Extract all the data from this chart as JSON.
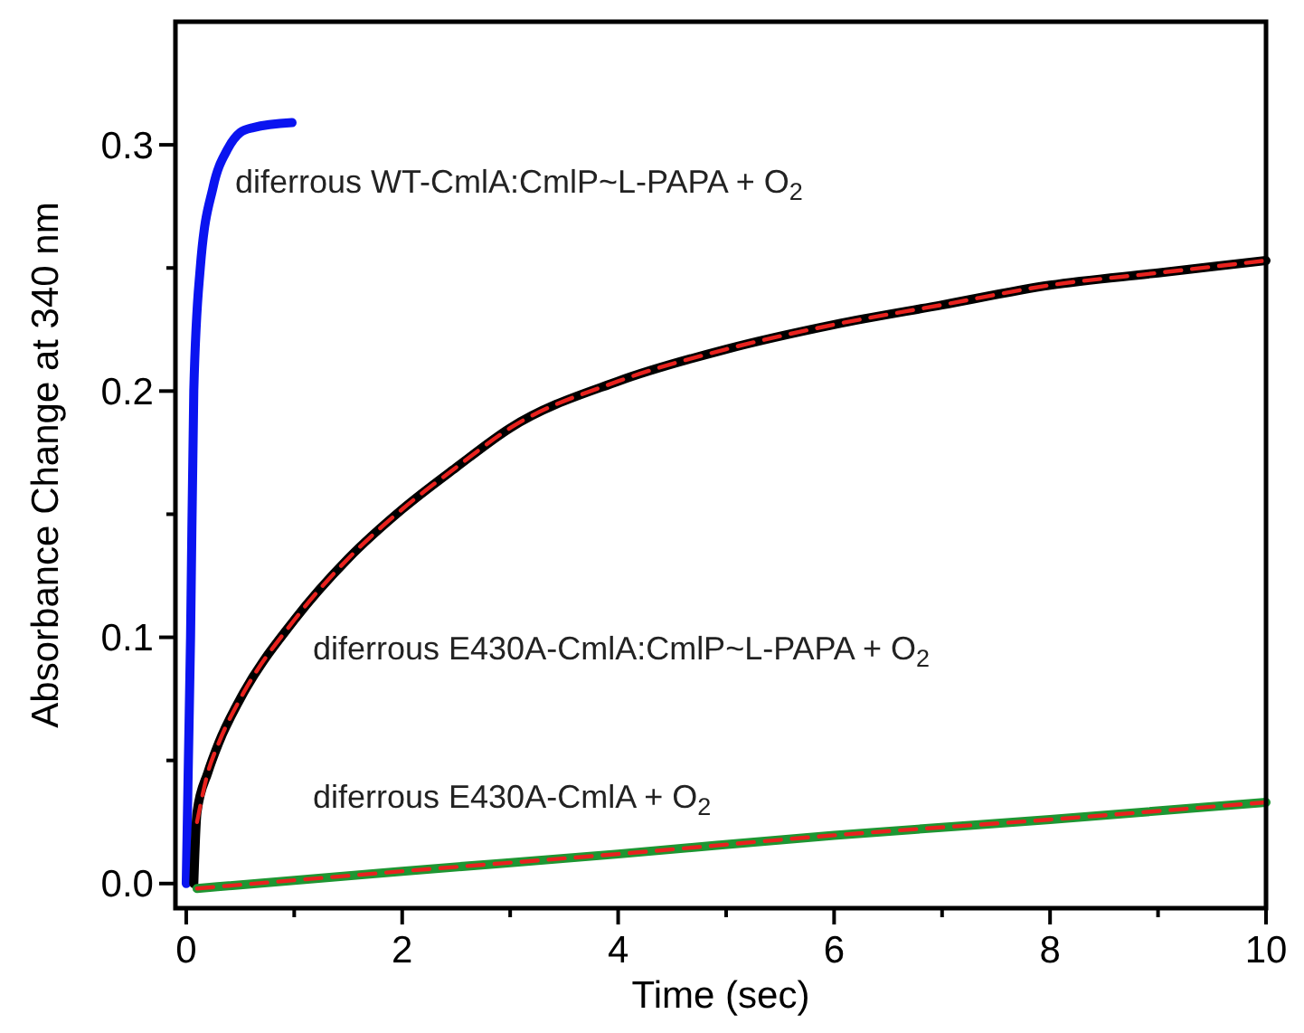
{
  "chart_data": {
    "type": "line",
    "xlabel": "Time (sec)",
    "ylabel": "Absorbance Change at 340 nm",
    "xlim": [
      -0.1,
      10
    ],
    "ylim": [
      -0.01,
      0.35
    ],
    "xticks": [
      0,
      {
        "value": 1,
        "label": null
      },
      2,
      {
        "value": 3,
        "label": null
      },
      4,
      {
        "value": 5,
        "label": null
      },
      6,
      {
        "value": 7,
        "label": null
      },
      8,
      {
        "value": 9,
        "label": null
      },
      10
    ],
    "yticks": [
      {
        "value": 0,
        "label": "0.0"
      },
      {
        "value": 0.05,
        "label": null
      },
      0.1,
      {
        "value": 0.15,
        "label": null
      },
      0.2,
      {
        "value": 0.25,
        "label": null
      },
      0.3
    ],
    "grid": false,
    "series": [
      {
        "color": "#0a14f0",
        "x": [
          0,
          0.02,
          0.04,
          0.07,
          0.13,
          0.25,
          0.38,
          0.5,
          0.62,
          0.98
        ],
        "values": [
          0,
          0.05,
          0.1,
          0.2,
          0.25,
          0.283,
          0.298,
          0.305,
          0.307,
          0.309
        ]
      },
      {
        "color": "#000000",
        "x": [
          0.07,
          0.1,
          0.2,
          0.3,
          0.5,
          1,
          1.5,
          2,
          2.5,
          3,
          4,
          5,
          6,
          7,
          8,
          9,
          10
        ],
        "values": [
          0,
          0.029,
          0.045,
          0.057,
          0.075,
          0.107,
          0.132,
          0.152,
          0.169,
          0.185,
          0.204,
          0.217,
          0.227,
          0.235,
          0.243,
          0.248,
          0.253
        ]
      },
      {
        "color": "#e8221e",
        "line_style": "dashed",
        "x": [
          0.1,
          0.2,
          0.3,
          0.5,
          1,
          1.5,
          2,
          2.5,
          3,
          4,
          5,
          6,
          7,
          8,
          9,
          10
        ],
        "values": [
          0.025,
          0.045,
          0.057,
          0.075,
          0.107,
          0.132,
          0.152,
          0.169,
          0.185,
          0.204,
          0.217,
          0.227,
          0.235,
          0.243,
          0.248,
          0.253
        ]
      },
      {
        "color": "#1e9632",
        "x": [
          0.1,
          2,
          4,
          6,
          8,
          10
        ],
        "values": [
          -0.002,
          0.005,
          0.012,
          0.0196,
          0.026,
          0.033
        ]
      },
      {
        "color": "#e8221e",
        "line_style": "dashed",
        "x": [
          0.1,
          2,
          4,
          6,
          8,
          10
        ],
        "values": [
          -0.002,
          0.005,
          0.012,
          0.0196,
          0.026,
          0.033
        ]
      }
    ],
    "annotations": [
      "diferrous WT-CmlA:CmlP~L-PAPA + O$_{2}$",
      "diferrous E430A-CmlA:CmlP~L-PAPA + O$_{2}$",
      "diferrous E430A-CmlA + O$_{2}$"
    ]
  }
}
